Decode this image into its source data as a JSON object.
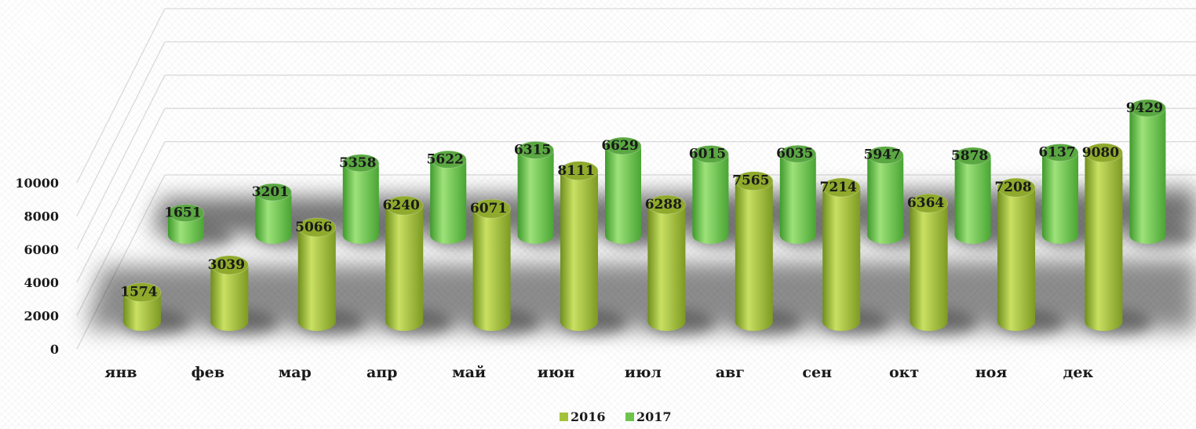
{
  "chart_data": {
    "type": "bar",
    "style": "3d-cylinder",
    "categories": [
      "янв",
      "фев",
      "мар",
      "апр",
      "май",
      "июн",
      "июл",
      "авг",
      "сен",
      "окт",
      "ноя",
      "дек"
    ],
    "series": [
      {
        "name": "2016",
        "color": "#a3c23a",
        "values": [
          1574,
          3039,
          5066,
          6240,
          6071,
          8111,
          6288,
          7565,
          7214,
          6364,
          7208,
          9080
        ]
      },
      {
        "name": "2017",
        "color": "#6cc44d",
        "values": [
          1651,
          3201,
          5358,
          5622,
          6315,
          6629,
          6015,
          6035,
          5947,
          5878,
          6137,
          9429
        ]
      }
    ],
    "y_ticks": [
      "0",
      "2000",
      "4000",
      "6000",
      "8000",
      "10000"
    ],
    "ylim": [
      0,
      10000
    ],
    "legend_position": "bottom-center",
    "grid": true
  }
}
